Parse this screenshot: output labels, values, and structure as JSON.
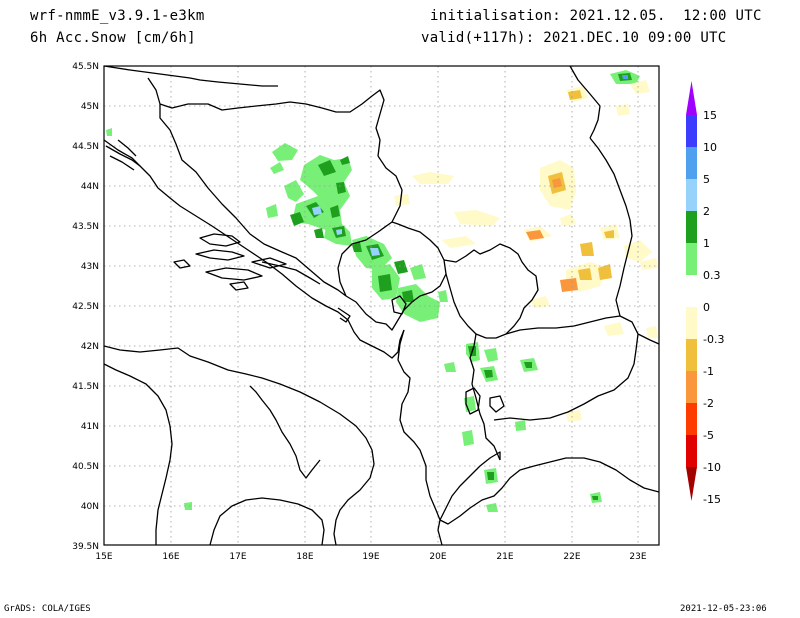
{
  "header": {
    "model": "wrf-nmmE_v3.9.1-e3km",
    "field": "6h Acc.Snow [cm/6h]",
    "initialisation": "initialisation: 2021.12.05.  12:00 UTC",
    "valid": "valid(+117h): 2021.DEC.10 09:00 UTC"
  },
  "map": {
    "lon_range": [
      15,
      23.25
    ],
    "lat_range": [
      39.5,
      45.5
    ],
    "lat_ticks": [
      "45.5N",
      "45N",
      "44.5N",
      "44N",
      "43.5N",
      "43N",
      "42.5N",
      "42N",
      "41.5N",
      "41N",
      "40.5N",
      "40N",
      "39.5N"
    ],
    "lon_ticks": [
      "15E",
      "16E",
      "17E",
      "18E",
      "19E",
      "20E",
      "21E",
      "22E",
      "23E"
    ],
    "gridlines": "dotted"
  },
  "colorbar": {
    "labels": [
      "15",
      "10",
      "5",
      "2",
      "1",
      "0.3",
      "0",
      "-0.3",
      "-1",
      "-2",
      "-5",
      "-10",
      "-15"
    ],
    "colors": [
      "#a000ff",
      "#3c3cff",
      "#50a0f0",
      "#96d2fa",
      "#1ea01e",
      "#78f078",
      "#ffffff",
      "#fffac8",
      "#f0c03c",
      "#fa963c",
      "#ff3c00",
      "#e10000",
      "#a50000"
    ]
  },
  "footer": {
    "left": "GrADS: COLA/IGES",
    "right": "2021-12-05-23:06"
  }
}
